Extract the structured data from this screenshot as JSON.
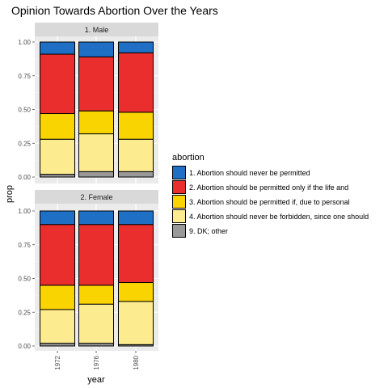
{
  "chart_data": {
    "type": "bar",
    "stacked": true,
    "title": "Opinion Towards Abortion Over the Years",
    "xlabel": "year",
    "ylabel": "prop",
    "ylim": [
      0,
      1
    ],
    "y_ticks": [
      "0.00",
      "0.25",
      "0.50",
      "0.75",
      "1.00"
    ],
    "categories": [
      "1972",
      "1976",
      "1980"
    ],
    "legend": {
      "title": "abortion",
      "position": "right"
    },
    "series": [
      {
        "name": "1. Abortion should never be permitted",
        "color": "#1f6fc5"
      },
      {
        "name": "2. Abortion should be permitted only if the life and",
        "color": "#ea2e2e"
      },
      {
        "name": "3. Abortion should be permitted if, due to personal",
        "color": "#f9d400"
      },
      {
        "name": "4. Abortion should never be forbidden, since one should",
        "color": "#fdeb90"
      },
      {
        "name": "9. DK; other",
        "color": "#999999"
      }
    ],
    "panels": [
      {
        "strip": "1. Male",
        "values": {
          "1972": [
            0.09,
            0.44,
            0.19,
            0.26,
            0.02
          ],
          "1976": [
            0.11,
            0.4,
            0.17,
            0.28,
            0.04
          ],
          "1980": [
            0.08,
            0.44,
            0.2,
            0.24,
            0.04
          ]
        }
      },
      {
        "strip": "2. Female",
        "values": {
          "1972": [
            0.1,
            0.45,
            0.18,
            0.25,
            0.02
          ],
          "1976": [
            0.1,
            0.45,
            0.14,
            0.29,
            0.02
          ],
          "1980": [
            0.1,
            0.43,
            0.14,
            0.32,
            0.01
          ]
        }
      }
    ],
    "grid": true
  }
}
